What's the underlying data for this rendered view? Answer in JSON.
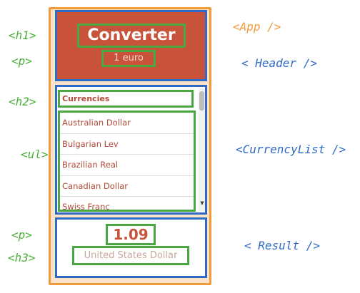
{
  "colors": {
    "app_outline": "#f39a3a",
    "component_outline": "#2f6bc6",
    "element_outline": "#49a83f",
    "header_background": "#c9533a",
    "accent_text": "#b14a38"
  },
  "header": {
    "title": "Converter",
    "subtitle": "1 euro"
  },
  "currency_list": {
    "heading": "Currencies",
    "items": [
      "Australian Dollar",
      "Bulgarian Lev",
      "Brazilian Real",
      "Canadian Dollar",
      "Swiss Franc"
    ]
  },
  "result": {
    "value": "1.09",
    "currency_name": "United States Dollar"
  },
  "annotations": {
    "h1": "<h1>",
    "p_header": "<p>",
    "h2": "<h2>",
    "ul": "<ul>",
    "p_result": "<p>",
    "h3": "<h3>",
    "app": "<App />",
    "header": "< Header />",
    "currency_list": "<CurrencyList />",
    "result": "< Result />"
  }
}
